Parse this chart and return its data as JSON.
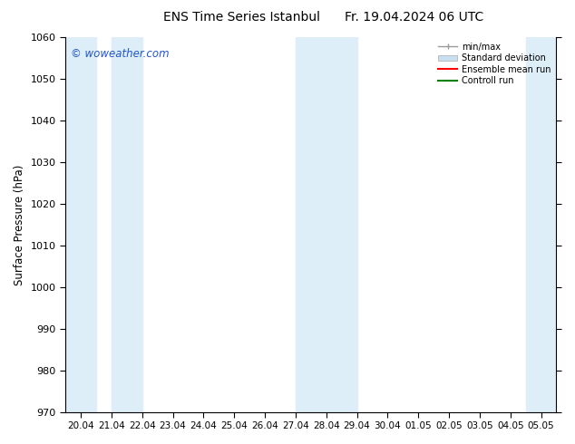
{
  "title": "ENS Time Series Istanbul",
  "title2": "Fr. 19.04.2024 06 UTC",
  "ylabel": "Surface Pressure (hPa)",
  "ylim": [
    970,
    1060
  ],
  "yticks": [
    970,
    980,
    990,
    1000,
    1010,
    1020,
    1030,
    1040,
    1050,
    1060
  ],
  "xtick_labels": [
    "20.04",
    "21.04",
    "22.04",
    "23.04",
    "24.04",
    "25.04",
    "26.04",
    "27.04",
    "28.04",
    "29.04",
    "30.04",
    "01.05",
    "02.05",
    "03.05",
    "04.05",
    "05.05"
  ],
  "watermark": "© woweather.com",
  "watermark_color": "#2255cc",
  "bg_color": "#ffffff",
  "plot_bg_color": "#ffffff",
  "band_color_std": "#ddeef8",
  "shaded_regions": [
    {
      "xstart": -0.5,
      "xend": 0.5
    },
    {
      "xstart": 1.0,
      "xend": 2.0
    },
    {
      "xstart": 7.0,
      "xend": 9.0
    },
    {
      "xstart": 14.5,
      "xend": 15.5
    }
  ],
  "legend_entries": [
    {
      "label": "min/max",
      "color": "#aaaaaa",
      "type": "errorbar"
    },
    {
      "label": "Standard deviation",
      "color": "#c8dff0",
      "type": "fill"
    },
    {
      "label": "Ensemble mean run",
      "color": "#ff0000",
      "type": "line"
    },
    {
      "label": "Controll run",
      "color": "#008000",
      "type": "line"
    }
  ],
  "n_xticks": 16
}
